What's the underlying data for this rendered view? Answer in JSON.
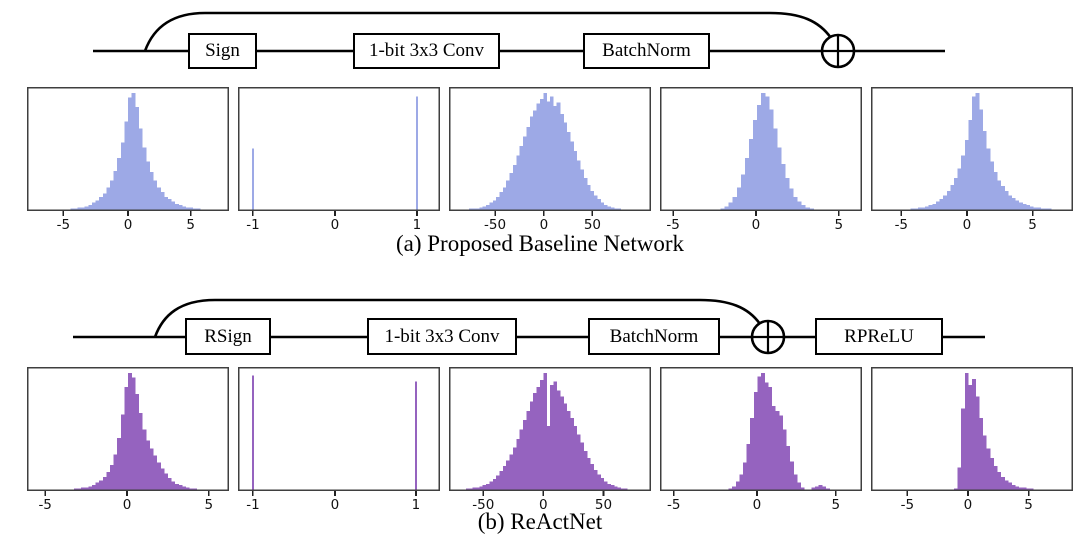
{
  "captions": {
    "a": "(a) Proposed Baseline Network",
    "b": "(b) ReActNet"
  },
  "colors": {
    "baseline_hist": "#9da9e6",
    "reactnet_hist": "#9563bf",
    "wire": "#000000",
    "axis_border": "#3f3f3f",
    "tick_text": "#111111"
  },
  "diagram_a": {
    "blocks": [
      {
        "label": "Sign"
      },
      {
        "label": "1-bit 3x3 Conv"
      },
      {
        "label": "BatchNorm"
      }
    ],
    "merge_symbol": "circle-plus"
  },
  "diagram_b": {
    "blocks": [
      {
        "label": "RSign"
      },
      {
        "label": "1-bit 3x3 Conv"
      },
      {
        "label": "BatchNorm"
      },
      {
        "label": "RPReLU"
      }
    ],
    "merge_symbol": "circle-plus"
  },
  "chart_data": [
    {
      "id": "a1",
      "row": "a",
      "type": "bar",
      "subtype": "histogram",
      "color": "#9da9e6",
      "grid": false,
      "x_range": [
        -7.9,
        8.2
      ],
      "ticks": [
        {
          "label": "-5",
          "pos": 0.18
        },
        {
          "label": "0",
          "pos": 0.5
        },
        {
          "label": "5",
          "pos": 0.81
        }
      ],
      "bins_pct": [
        0,
        0,
        0,
        0,
        0,
        0,
        0,
        0,
        1,
        1,
        1,
        1,
        2,
        2,
        3,
        3,
        4,
        5,
        7,
        9,
        12,
        15,
        20,
        26,
        34,
        45,
        58,
        76,
        96,
        100,
        88,
        70,
        54,
        42,
        33,
        26,
        20,
        16,
        12,
        10,
        8,
        6,
        5,
        4,
        3,
        3,
        2,
        2,
        1,
        1,
        1,
        1,
        0,
        0,
        0,
        0
      ]
    },
    {
      "id": "a2",
      "row": "a",
      "type": "bar",
      "subtype": "histogram",
      "color": "#9da9e6",
      "grid": false,
      "x_range": [
        -1.2,
        1.3
      ],
      "ticks": [
        {
          "label": "-1",
          "pos": 0.074
        },
        {
          "label": "0",
          "pos": 0.48
        },
        {
          "label": "1",
          "pos": 0.886
        }
      ],
      "spikes": [
        {
          "x": -1,
          "pos": 0.074,
          "height_pct": 53
        },
        {
          "x": 1,
          "pos": 0.886,
          "height_pct": 97
        }
      ]
    },
    {
      "id": "a3",
      "row": "a",
      "type": "bar",
      "subtype": "histogram",
      "color": "#9da9e6",
      "grid": false,
      "x_range": [
        -97,
        110
      ],
      "ticks": [
        {
          "label": "-50",
          "pos": 0.228
        },
        {
          "label": "0",
          "pos": 0.47
        },
        {
          "label": "50",
          "pos": 0.71
        }
      ],
      "bins_pct": [
        0,
        0,
        1,
        1,
        1,
        1,
        2,
        2,
        2,
        3,
        4,
        5,
        7,
        9,
        12,
        16,
        20,
        26,
        32,
        39,
        47,
        55,
        63,
        71,
        80,
        85,
        91,
        95,
        100,
        93,
        97,
        89,
        92,
        82,
        75,
        67,
        59,
        51,
        43,
        35,
        28,
        22,
        17,
        13,
        10,
        7,
        5,
        4,
        3,
        2,
        2,
        1,
        1,
        1,
        1,
        0,
        0,
        0,
        0,
        0
      ]
    },
    {
      "id": "a4",
      "row": "a",
      "type": "bar",
      "subtype": "histogram",
      "color": "#9da9e6",
      "grid": false,
      "x_range": [
        -5.8,
        6.4
      ],
      "ticks": [
        {
          "label": "-5",
          "pos": 0.065
        },
        {
          "label": "0",
          "pos": 0.475
        },
        {
          "label": "5",
          "pos": 0.885
        }
      ],
      "bins_pct": [
        0,
        0,
        0,
        0,
        0,
        0,
        0,
        0,
        0,
        0,
        0,
        0,
        0,
        1,
        1,
        2,
        4,
        7,
        12,
        20,
        31,
        45,
        61,
        77,
        90,
        100,
        97,
        86,
        70,
        54,
        40,
        28,
        19,
        12,
        8,
        5,
        3,
        2,
        1,
        1,
        1,
        0,
        0,
        0,
        0,
        0,
        0,
        0,
        0,
        0
      ]
    },
    {
      "id": "a5",
      "row": "a",
      "type": "bar",
      "subtype": "histogram",
      "color": "#9da9e6",
      "grid": false,
      "x_range": [
        -7.3,
        8.0
      ],
      "ticks": [
        {
          "label": "-5",
          "pos": 0.15
        },
        {
          "label": "0",
          "pos": 0.475
        },
        {
          "label": "5",
          "pos": 0.8
        }
      ],
      "bins_pct": [
        0,
        0,
        0,
        0,
        0,
        0,
        0,
        0,
        1,
        1,
        1,
        2,
        2,
        3,
        3,
        4,
        5,
        6,
        8,
        10,
        13,
        17,
        22,
        28,
        36,
        47,
        60,
        77,
        97,
        100,
        86,
        68,
        53,
        42,
        33,
        26,
        21,
        17,
        13,
        11,
        9,
        7,
        6,
        5,
        4,
        3,
        3,
        2,
        2,
        2,
        1,
        1,
        1,
        1,
        0,
        0
      ]
    },
    {
      "id": "b1",
      "row": "b",
      "type": "bar",
      "subtype": "histogram",
      "color": "#9563bf",
      "grid": false,
      "x_range": [
        -6.1,
        6.2
      ],
      "ticks": [
        {
          "label": "-5",
          "pos": 0.09
        },
        {
          "label": "0",
          "pos": 0.495
        },
        {
          "label": "5",
          "pos": 0.9
        }
      ],
      "bins_pct": [
        0,
        0,
        0,
        0,
        0,
        0,
        0,
        0,
        0,
        0,
        1,
        1,
        1,
        2,
        2,
        3,
        3,
        4,
        5,
        7,
        9,
        12,
        16,
        22,
        31,
        45,
        65,
        88,
        100,
        96,
        82,
        66,
        52,
        43,
        36,
        30,
        24,
        19,
        15,
        11,
        8,
        6,
        5,
        4,
        3,
        2,
        2,
        1,
        1,
        1,
        1,
        0,
        0,
        0,
        0,
        0
      ]
    },
    {
      "id": "b2",
      "row": "b",
      "type": "bar",
      "subtype": "histogram",
      "color": "#9563bf",
      "grid": false,
      "x_range": [
        -1.2,
        1.3
      ],
      "ticks": [
        {
          "label": "-1",
          "pos": 0.074
        },
        {
          "label": "0",
          "pos": 0.48
        },
        {
          "label": "1",
          "pos": 0.881
        }
      ],
      "spikes": [
        {
          "x": -1,
          "pos": 0.074,
          "height_pct": 98
        },
        {
          "x": 1,
          "pos": 0.881,
          "height_pct": 93
        }
      ]
    },
    {
      "id": "b3",
      "row": "b",
      "type": "bar",
      "subtype": "histogram",
      "color": "#9563bf",
      "grid": false,
      "x_range": [
        -78,
        89
      ],
      "ticks": [
        {
          "label": "-50",
          "pos": 0.17
        },
        {
          "label": "0",
          "pos": 0.467
        },
        {
          "label": "50",
          "pos": 0.765
        }
      ],
      "bins_pct": [
        0,
        0,
        1,
        1,
        1,
        2,
        2,
        3,
        3,
        4,
        5,
        6,
        8,
        10,
        13,
        17,
        21,
        26,
        31,
        37,
        44,
        52,
        60,
        68,
        76,
        83,
        88,
        94,
        100,
        55,
        90,
        93,
        85,
        80,
        74,
        68,
        62,
        55,
        48,
        41,
        34,
        28,
        23,
        18,
        14,
        11,
        8,
        6,
        5,
        4,
        3,
        2,
        2,
        1,
        1,
        1,
        0,
        0,
        0,
        0
      ]
    },
    {
      "id": "b4",
      "row": "b",
      "type": "bar",
      "subtype": "histogram",
      "color": "#9563bf",
      "grid": false,
      "x_range": [
        -5.9,
        6.4
      ],
      "ticks": [
        {
          "label": "-5",
          "pos": 0.068
        },
        {
          "label": "0",
          "pos": 0.48
        },
        {
          "label": "5",
          "pos": 0.87
        }
      ],
      "bins_pct": [
        0,
        0,
        0,
        0,
        0,
        0,
        0,
        0,
        0,
        0,
        0,
        0,
        0,
        0,
        0,
        0,
        0,
        0,
        1,
        2,
        4,
        8,
        14,
        24,
        40,
        62,
        84,
        97,
        100,
        92,
        88,
        72,
        68,
        64,
        52,
        38,
        25,
        14,
        7,
        3,
        1,
        1,
        3,
        4,
        5,
        4,
        2,
        1,
        0,
        0,
        0,
        0,
        0,
        0,
        0,
        0
      ]
    },
    {
      "id": "b5",
      "row": "b",
      "type": "bar",
      "subtype": "histogram",
      "color": "#9563bf",
      "grid": false,
      "x_range": [
        -7.7,
        8.3
      ],
      "ticks": [
        {
          "label": "-5",
          "pos": 0.18
        },
        {
          "label": "0",
          "pos": 0.48
        },
        {
          "label": "5",
          "pos": 0.78
        }
      ],
      "bins_pct": [
        0,
        0,
        0,
        0,
        0,
        0,
        0,
        0,
        0,
        0,
        0,
        0,
        0,
        0,
        0,
        0,
        0,
        0,
        0,
        0,
        0,
        0,
        0,
        2,
        20,
        70,
        100,
        90,
        95,
        80,
        62,
        47,
        36,
        28,
        21,
        16,
        12,
        9,
        7,
        5,
        4,
        3,
        3,
        2,
        2,
        1,
        1,
        1,
        0,
        0,
        0,
        0,
        0,
        0,
        0,
        0
      ]
    }
  ]
}
